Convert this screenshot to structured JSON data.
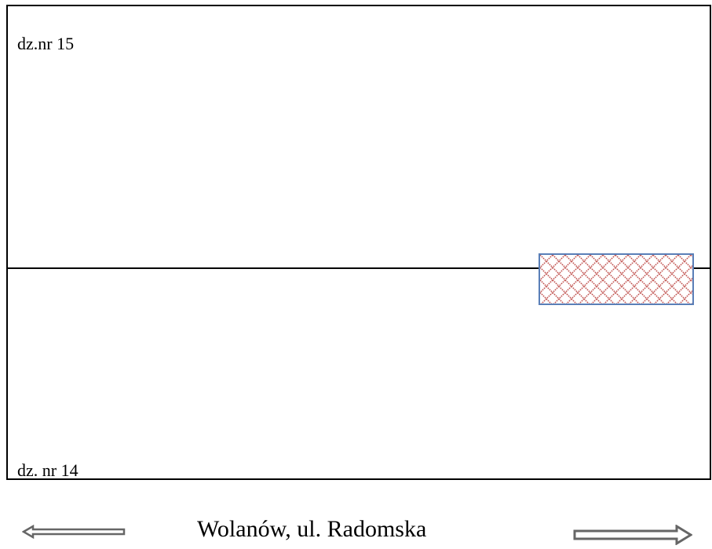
{
  "map": {
    "plot_upper": {
      "label": "dz.nr 15"
    },
    "plot_lower": {
      "label": "dz. nr 14"
    },
    "hatched_area": {
      "fill_color": "#c0504d",
      "border_color": "#5a7fb8"
    },
    "street": {
      "name": "Wolanów, ul. Radomska",
      "arrow_left_icon": "arrow-left-icon",
      "arrow_right_icon": "arrow-right-icon"
    }
  }
}
